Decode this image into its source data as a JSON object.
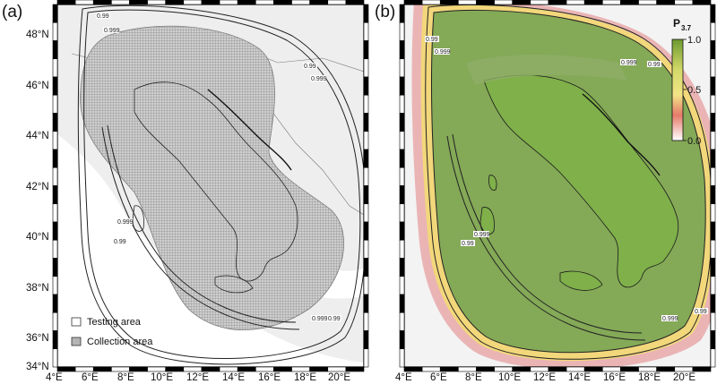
{
  "panel_a": {
    "letter": "(a)",
    "lat_ticks": [
      "48°N",
      "46°N",
      "44°N",
      "42°N",
      "40°N",
      "38°N",
      "36°N",
      "34°N"
    ],
    "lon_ticks": [
      "4°E",
      "6°E",
      "8°E",
      "10°E",
      "12°E",
      "14°E",
      "16°E",
      "18°E",
      "20°E"
    ],
    "contour_labels": [
      "0.99",
      "0.999",
      "0.99",
      "0.999",
      "0.999",
      "0.99",
      "0.999",
      "0.99"
    ],
    "legend": {
      "testing_label": "Testing area",
      "collection_label": "Collection area"
    }
  },
  "panel_b": {
    "letter": "(b)",
    "lon_ticks": [
      "4°E",
      "6°E",
      "8°E",
      "10°E",
      "12°E",
      "14°E",
      "16°E",
      "18°E",
      "20°E"
    ],
    "contour_labels": [
      "0.99",
      "0.999",
      "0.999",
      "0.99",
      "0.999",
      "0.99",
      "0.999",
      "0.99"
    ],
    "colorbar": {
      "title": "P",
      "subscript": "3.7",
      "ticks": [
        "1.0",
        "0.5",
        "0.0"
      ]
    }
  },
  "colors": {
    "land_gray": "#ececec",
    "grid_gray": "#8f8f8f",
    "green": "#7fa84e",
    "yellow": "#f0e88a",
    "red": "#d9534f",
    "frame": "#000000"
  }
}
